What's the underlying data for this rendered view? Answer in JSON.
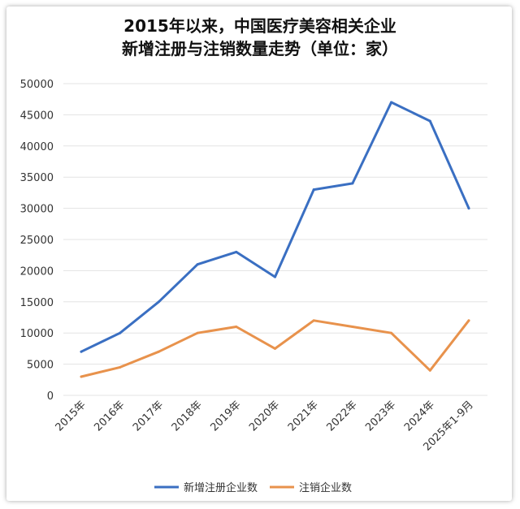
{
  "chart_data": {
    "type": "line",
    "title_line1": "2015年以来，中国医疗美容相关企业",
    "title_line2": "新增注册与注销数量走势（单位：家）",
    "categories": [
      "2015年",
      "2016年",
      "2017年",
      "2018年",
      "2019年",
      "2020年",
      "2021年",
      "2022年",
      "2023年",
      "2024年",
      "2025年1-9月"
    ],
    "series": [
      {
        "name": "新增注册企业数",
        "color": "#3a6fc2",
        "values": [
          7000,
          10000,
          15000,
          21000,
          23000,
          19000,
          33000,
          34000,
          47000,
          44000,
          30000
        ]
      },
      {
        "name": "注销企业数",
        "color": "#e8924c",
        "values": [
          3000,
          4500,
          7000,
          10000,
          11000,
          7500,
          12000,
          11000,
          10000,
          4000,
          12000
        ]
      }
    ],
    "ylim": [
      0,
      50000
    ],
    "yticks": [
      "0",
      "5000",
      "10000",
      "15000",
      "20000",
      "25000",
      "30000",
      "35000",
      "40000",
      "45000",
      "50000"
    ],
    "grid": true,
    "legend": "bottom"
  }
}
